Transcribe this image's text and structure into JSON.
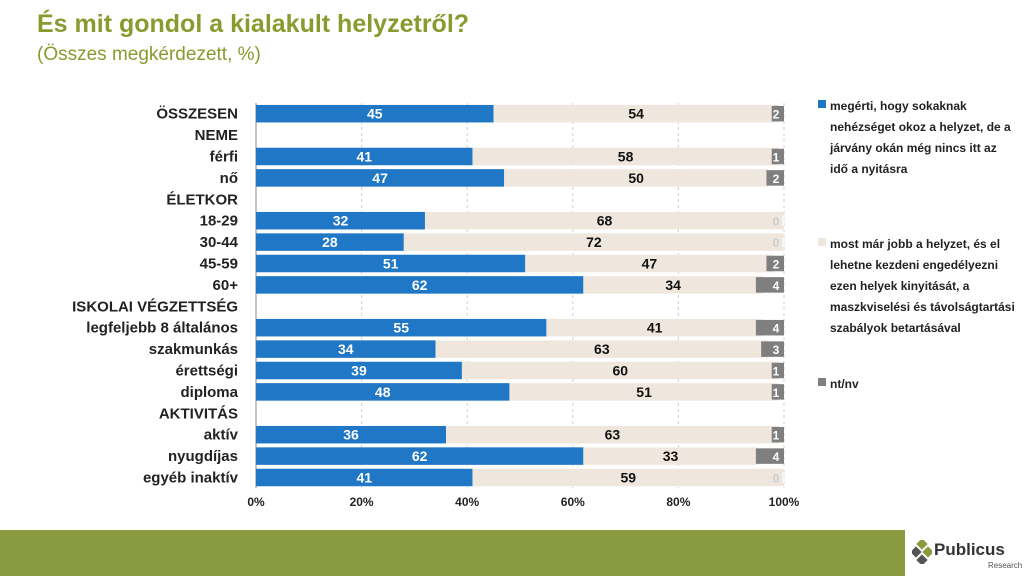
{
  "title": "És mit gondol a kialakult helyzetről?",
  "subtitle": "(Összes megkérdezett, %)",
  "colors": {
    "series1": "#1f77c6",
    "series2": "#efe7de",
    "series3": "#7f7f7f",
    "accent": "#8a9a2e",
    "footer": "#8a9a3f"
  },
  "logo": {
    "name": "Publicus",
    "sub": "Research"
  },
  "chart_data": {
    "type": "bar",
    "orientation": "horizontal",
    "stacked": true,
    "categories": [
      "ÖSSZESEN",
      "NEME",
      "férfi",
      "nő",
      "ÉLETKOR",
      "18-29",
      "30-44",
      "45-59",
      "60+",
      "ISKOLAI VÉGZETTSÉG",
      "legfeljebb 8 általános",
      "szakmunkás",
      "érettségi",
      "diploma",
      "AKTIVITÁS",
      "aktív",
      "nyugdíjas",
      "egyéb inaktív"
    ],
    "series": [
      {
        "name": "megérti, hogy sokaknak nehézséget okoz a helyzet, de a járvány okán még nincs itt az idő a nyitásra",
        "values": [
          45,
          null,
          41,
          47,
          null,
          32,
          28,
          51,
          62,
          null,
          55,
          34,
          39,
          48,
          null,
          36,
          62,
          41
        ]
      },
      {
        "name": "most már jobb a helyzet, és el lehetne kezdeni engedélyezni ezen helyek kinyitását, a maszkviselési és távolságtartási szabályok betartásával",
        "values": [
          54,
          null,
          58,
          50,
          null,
          68,
          72,
          47,
          34,
          null,
          41,
          63,
          60,
          51,
          null,
          63,
          33,
          59
        ]
      },
      {
        "name": "nt/nv",
        "values": [
          2,
          null,
          1,
          2,
          null,
          0,
          0,
          2,
          4,
          null,
          4,
          3,
          1,
          1,
          null,
          1,
          4,
          0
        ]
      }
    ],
    "xlim": [
      0,
      100
    ],
    "xticks": [
      "0%",
      "20%",
      "40%",
      "60%",
      "80%",
      "100%"
    ],
    "grid": true,
    "legend": "right"
  }
}
